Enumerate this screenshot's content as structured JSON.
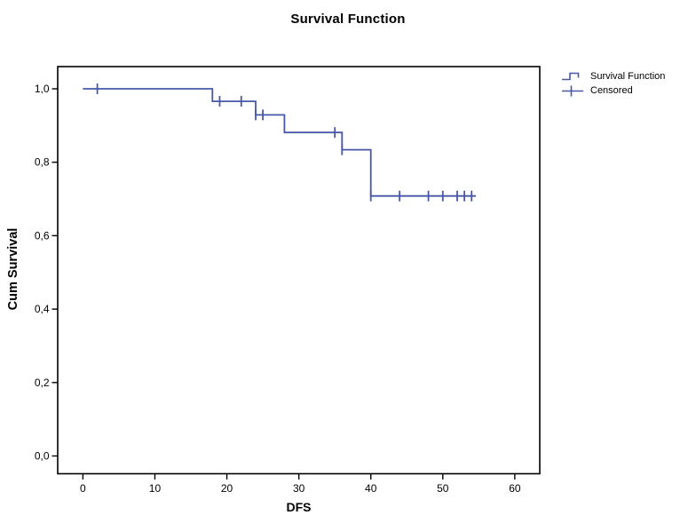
{
  "title": "Survival Function",
  "colors": {
    "series": "#4858A7",
    "frame": "#000000",
    "text": "#000000",
    "background": "#ffffff"
  },
  "chart_data": {
    "type": "line",
    "subtype": "kaplan-meier-step",
    "title": "Survival Function",
    "xlabel": "DFS",
    "ylabel": "Cum Survival",
    "xlim": [
      -3.5,
      63.5
    ],
    "ylim": [
      -0.05,
      1.06
    ],
    "x_ticks": [
      0,
      10,
      20,
      30,
      40,
      50,
      60
    ],
    "y_ticks": [
      0.0,
      0.2,
      0.4,
      0.6,
      0.8,
      1.0
    ],
    "y_tick_labels": [
      "0,0",
      "0,2",
      "0,4",
      "0,6",
      "0,8",
      "1,0"
    ],
    "decimal_separator": ",",
    "grid": false,
    "legend_position": "outside-top-right",
    "legend": [
      {
        "label": "Survival Function",
        "symbol": "step-line"
      },
      {
        "label": "Censored",
        "symbol": "plus"
      }
    ],
    "series": [
      {
        "name": "Survival Function",
        "type": "step",
        "color": "#4858A7",
        "points": [
          [
            0,
            1.0
          ],
          [
            18,
            1.0
          ],
          [
            18,
            0.966
          ],
          [
            24,
            0.966
          ],
          [
            24,
            0.929
          ],
          [
            28,
            0.929
          ],
          [
            28,
            0.881
          ],
          [
            36,
            0.881
          ],
          [
            36,
            0.834
          ],
          [
            40,
            0.834
          ],
          [
            40,
            0.708
          ],
          [
            54.6,
            0.708
          ]
        ]
      },
      {
        "name": "Censored",
        "type": "censor-marks",
        "color": "#4858A7",
        "points": [
          [
            2,
            1.0
          ],
          [
            19,
            0.966
          ],
          [
            22,
            0.966
          ],
          [
            24,
            0.929
          ],
          [
            25,
            0.929
          ],
          [
            35,
            0.881
          ],
          [
            36,
            0.834
          ],
          [
            40,
            0.708
          ],
          [
            44,
            0.708
          ],
          [
            48,
            0.708
          ],
          [
            50,
            0.708
          ],
          [
            52,
            0.708
          ],
          [
            53,
            0.708
          ],
          [
            54,
            0.708
          ]
        ]
      }
    ]
  }
}
